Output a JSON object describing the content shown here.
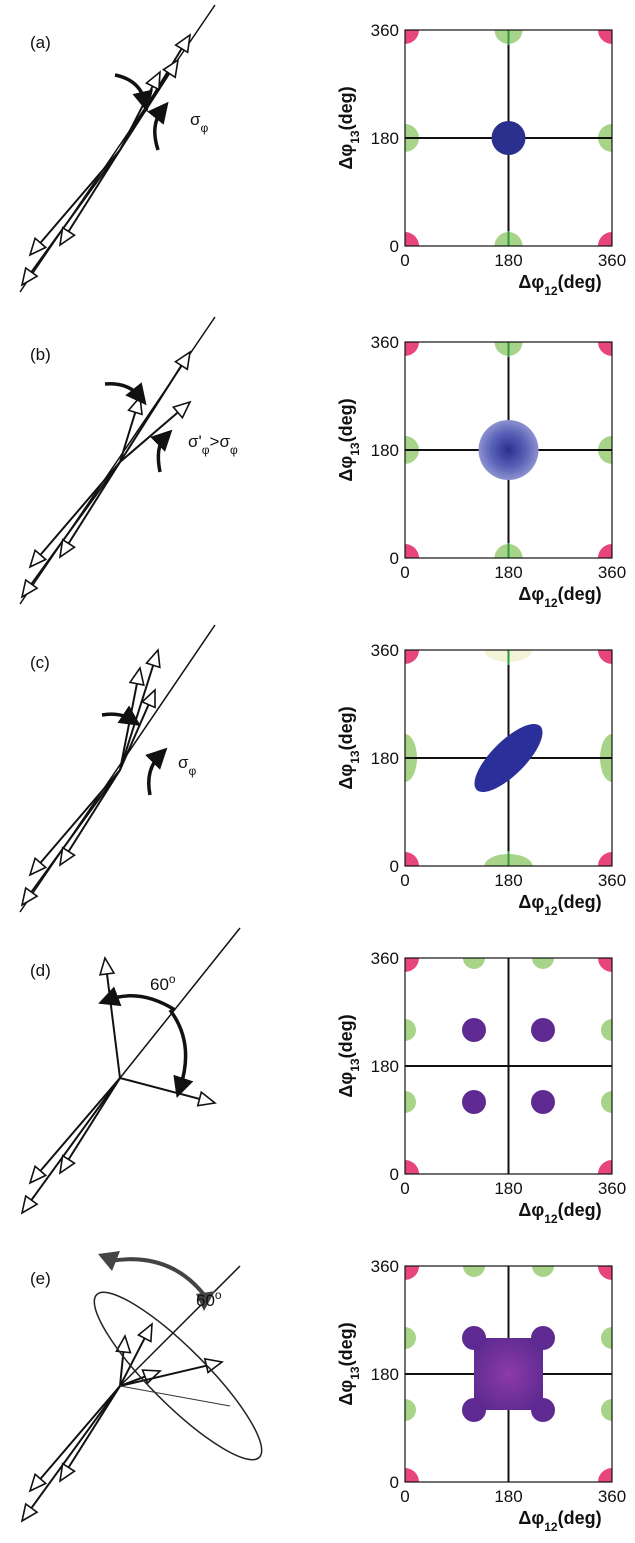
{
  "panels": [
    {
      "label": "(a)",
      "annotation": [
        {
          "text": "σ",
          "style": "normal"
        },
        {
          "text": "φ",
          "style": "sub"
        }
      ]
    },
    {
      "label": "(b)",
      "annotation": [
        {
          "text": "σ'",
          "style": "normal"
        },
        {
          "text": "φ",
          "style": "sub"
        },
        {
          "text": ">σ",
          "style": "normal"
        },
        {
          "text": "φ",
          "style": "sub"
        }
      ]
    },
    {
      "label": "(c)",
      "annotation": [
        {
          "text": "σ",
          "style": "normal"
        },
        {
          "text": "φ",
          "style": "sub"
        }
      ]
    },
    {
      "label": "(d)",
      "annotation": [
        {
          "text": "60",
          "style": "normal"
        },
        {
          "text": "o",
          "style": "sup"
        }
      ]
    },
    {
      "label": "(e)",
      "annotation": [
        {
          "text": "60",
          "style": "normal"
        },
        {
          "text": "o",
          "style": "sup"
        }
      ]
    }
  ],
  "axes": {
    "x_label": [
      {
        "text": "Δφ",
        "style": "normal"
      },
      {
        "text": "12",
        "style": "sub"
      },
      {
        "text": "(deg)",
        "style": "normal"
      }
    ],
    "y_label": [
      {
        "text": "Δφ",
        "style": "normal"
      },
      {
        "text": "13",
        "style": "sub"
      },
      {
        "text": "(deg)",
        "style": "normal"
      }
    ],
    "ticks": [
      0,
      180,
      360
    ]
  }
}
